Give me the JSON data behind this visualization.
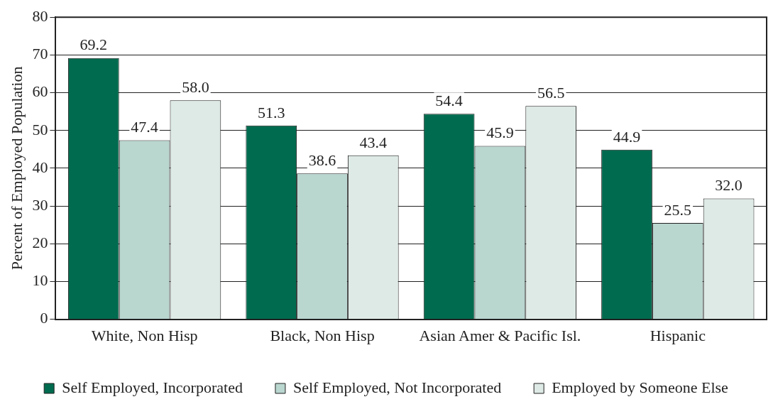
{
  "chart_data": {
    "type": "bar",
    "ylabel": "Percent of Employed Population",
    "categories": [
      "White, Non Hisp",
      "Black, Non Hisp",
      "Asian Amer & Pacific Isl.",
      "Hispanic"
    ],
    "series": [
      {
        "name": "Self Employed, Incorporated",
        "color": "#006b4f",
        "values": [
          69.2,
          51.3,
          54.4,
          44.9
        ],
        "value_labels": [
          "69.2",
          "51.3",
          "54.4",
          "44.9"
        ]
      },
      {
        "name": "Self Employed, Not Incorporated",
        "color": "#b9d6cf",
        "values": [
          47.4,
          38.6,
          45.9,
          25.5
        ],
        "value_labels": [
          "47.4",
          "38.6",
          "45.9",
          "25.5"
        ]
      },
      {
        "name": "Employed by Someone Else",
        "color": "#deeae6",
        "values": [
          58.0,
          43.4,
          56.5,
          32.0
        ],
        "value_labels": [
          "58.0",
          "43.4",
          "56.5",
          "32.0"
        ]
      }
    ],
    "ylim": [
      0,
      80
    ],
    "yticks": [
      0,
      10,
      20,
      30,
      40,
      50,
      60,
      70,
      80
    ],
    "grid": "y",
    "legend": "bottom"
  }
}
